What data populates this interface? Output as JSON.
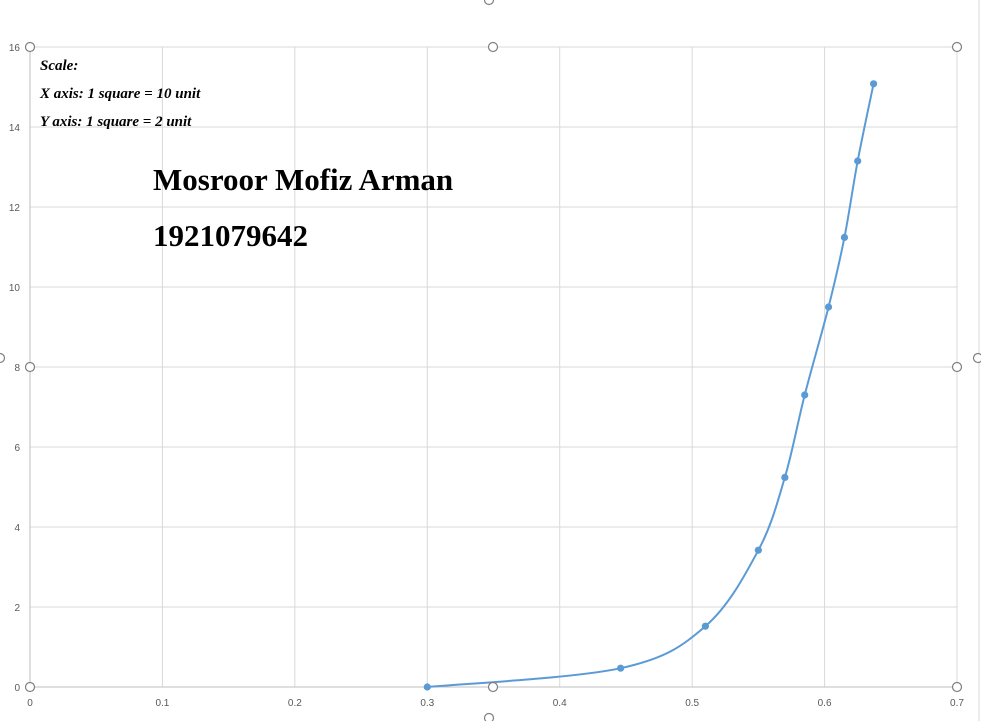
{
  "chart_data": {
    "type": "scatter",
    "smooth_line": true,
    "title": "",
    "xlabel": "",
    "ylabel": "",
    "xlim": [
      0,
      0.7
    ],
    "ylim": [
      0,
      16
    ],
    "x_ticks": [
      "0",
      "0.1",
      "0.2",
      "0.3",
      "0.4",
      "0.5",
      "0.6",
      "0.7"
    ],
    "y_ticks": [
      "0",
      "2",
      "4",
      "6",
      "8",
      "10",
      "12",
      "14",
      "16"
    ],
    "grid": true,
    "legend": "none",
    "series": [
      {
        "color": "#5B9BD5",
        "x": [
          0.3,
          0.446,
          0.51,
          0.55,
          0.57,
          0.585,
          0.603,
          0.615,
          0.625,
          0.637
        ],
        "y": [
          0,
          0.47,
          1.52,
          3.42,
          5.24,
          7.3,
          9.5,
          11.24,
          13.15,
          15.08
        ]
      }
    ],
    "annotations": {
      "scale_label": "Scale:",
      "x_scale": "X axis: 1 square = 10 unit",
      "y_scale": "Y axis: 1 square =  2 unit",
      "name": "Mosroor Mofiz Arman",
      "id_number": "1921079642"
    }
  }
}
